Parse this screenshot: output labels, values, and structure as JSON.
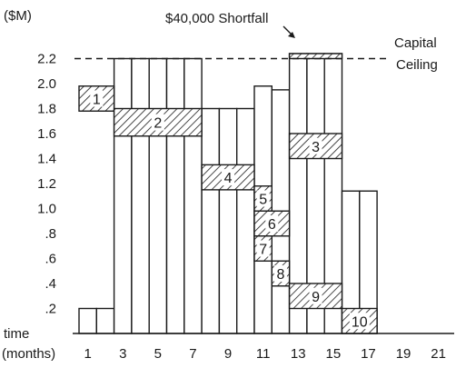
{
  "chart_data": {
    "type": "bar",
    "y_unit_label": "($M)",
    "x_label_line1": "time",
    "x_label_line2": "(months)",
    "x_ticks": [
      "1",
      "3",
      "5",
      "7",
      "9",
      "11",
      "13",
      "15",
      "17",
      "19",
      "21"
    ],
    "x_tick_values": [
      1,
      3,
      5,
      7,
      9,
      11,
      13,
      15,
      17,
      19,
      21
    ],
    "y_ticks": [
      "2.2",
      "2.0",
      "1.8",
      "1.6",
      "1.4",
      "1.2",
      "1.0",
      ".8",
      ".6",
      ".4",
      ".2"
    ],
    "y_tick_values": [
      2.2,
      2.0,
      1.8,
      1.6,
      1.4,
      1.2,
      1.0,
      0.8,
      0.6,
      0.4,
      0.2
    ],
    "xlim": [
      0.5,
      21.5
    ],
    "ylim": [
      0,
      2.5
    ],
    "months": [
      1,
      2,
      3,
      4,
      5,
      6,
      7,
      8,
      9,
      10,
      11,
      12,
      13,
      14,
      15,
      16,
      17
    ],
    "values": [
      0.2,
      0.2,
      2.2,
      2.2,
      2.2,
      2.2,
      2.2,
      1.8,
      1.8,
      1.8,
      1.98,
      1.95,
      2.24,
      2.24,
      2.24,
      1.14,
      1.14
    ],
    "capital_ceiling": 2.2,
    "ceiling_label_line1": "Capital",
    "ceiling_label_line2": "Ceiling",
    "shortfall_label": "$40,000 Shortfall",
    "shortfall_amount": 0.04,
    "tasks": [
      {
        "label": "1",
        "start": 1,
        "end": 2,
        "y_low": 1.78,
        "y_high": 1.98
      },
      {
        "label": "2",
        "start": 3,
        "end": 7,
        "y_low": 1.58,
        "y_high": 1.8
      },
      {
        "label": "3",
        "start": 13,
        "end": 15,
        "y_low": 1.4,
        "y_high": 1.6
      },
      {
        "label": "4",
        "start": 8,
        "end": 10,
        "y_low": 1.15,
        "y_high": 1.35
      },
      {
        "label": "5",
        "start": 11,
        "end": 11,
        "y_low": 0.98,
        "y_high": 1.18
      },
      {
        "label": "6",
        "start": 11,
        "end": 12,
        "y_low": 0.78,
        "y_high": 0.98
      },
      {
        "label": "7",
        "start": 11,
        "end": 11,
        "y_low": 0.58,
        "y_high": 0.78
      },
      {
        "label": "8",
        "start": 12,
        "end": 12,
        "y_low": 0.38,
        "y_high": 0.58
      },
      {
        "label": "9",
        "start": 13,
        "end": 15,
        "y_low": 0.2,
        "y_high": 0.4
      },
      {
        "label": "10",
        "start": 16,
        "end": 17,
        "y_low": 0.0,
        "y_high": 0.2
      }
    ]
  }
}
